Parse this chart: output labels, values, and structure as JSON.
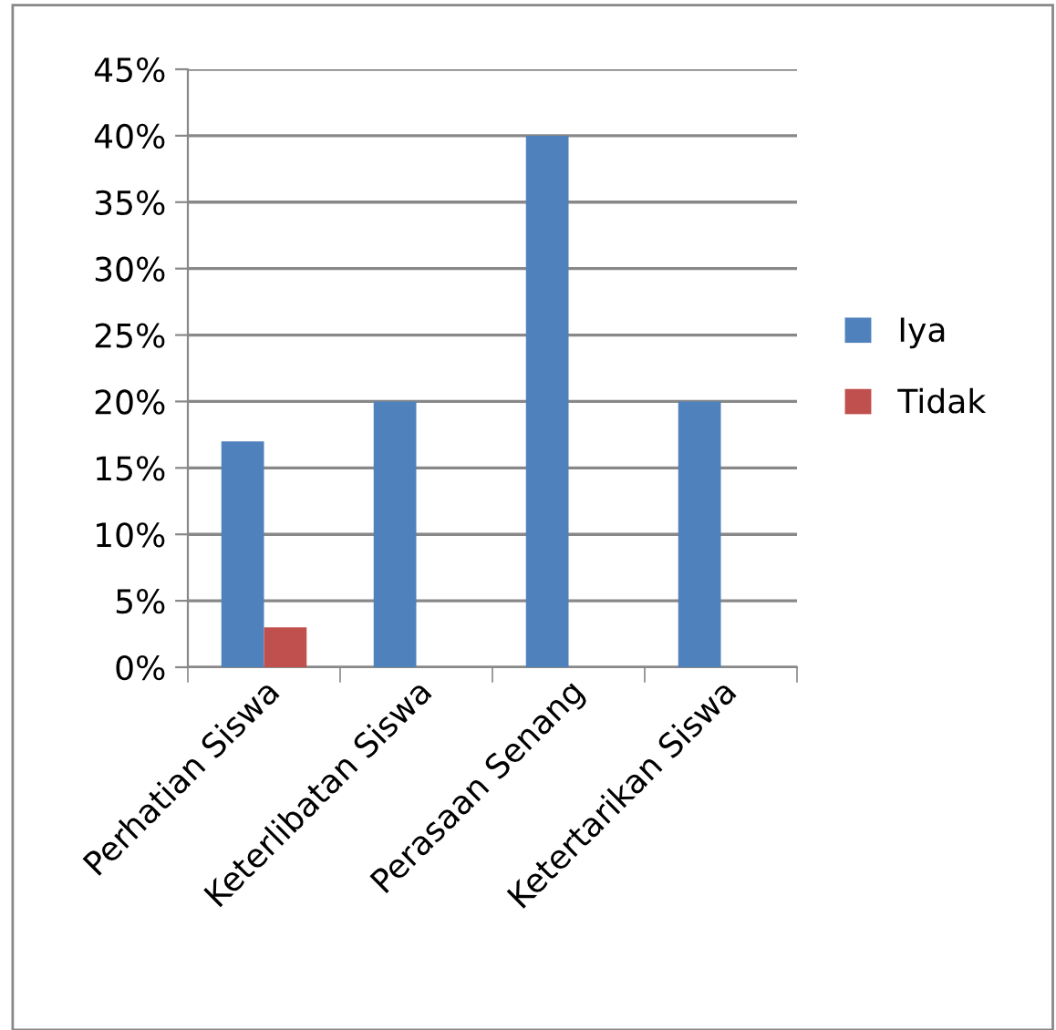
{
  "chart_data": {
    "type": "bar",
    "categories": [
      "Perhatian Siswa",
      "Keterlibatan Siswa",
      "Perasaan Senang",
      "Ketertarikan Siswa"
    ],
    "series": [
      {
        "name": "Iya",
        "color": "#4f81bd",
        "values": [
          17,
          20,
          40,
          20
        ]
      },
      {
        "name": "Tidak",
        "color": "#c0504d",
        "values": [
          3,
          0,
          0,
          0
        ]
      }
    ],
    "ylim": [
      0,
      45
    ],
    "yticks": [
      {
        "value": 0,
        "label": "0%"
      },
      {
        "value": 5,
        "label": "5%"
      },
      {
        "value": 10,
        "label": "10%"
      },
      {
        "value": 15,
        "label": "15%"
      },
      {
        "value": 20,
        "label": "20%"
      },
      {
        "value": 25,
        "label": "25%"
      },
      {
        "value": 30,
        "label": "30%"
      },
      {
        "value": 35,
        "label": "35%"
      },
      {
        "value": 40,
        "label": "40%"
      },
      {
        "value": 45,
        "label": "45%"
      }
    ],
    "grid": "y",
    "legend": "right"
  }
}
